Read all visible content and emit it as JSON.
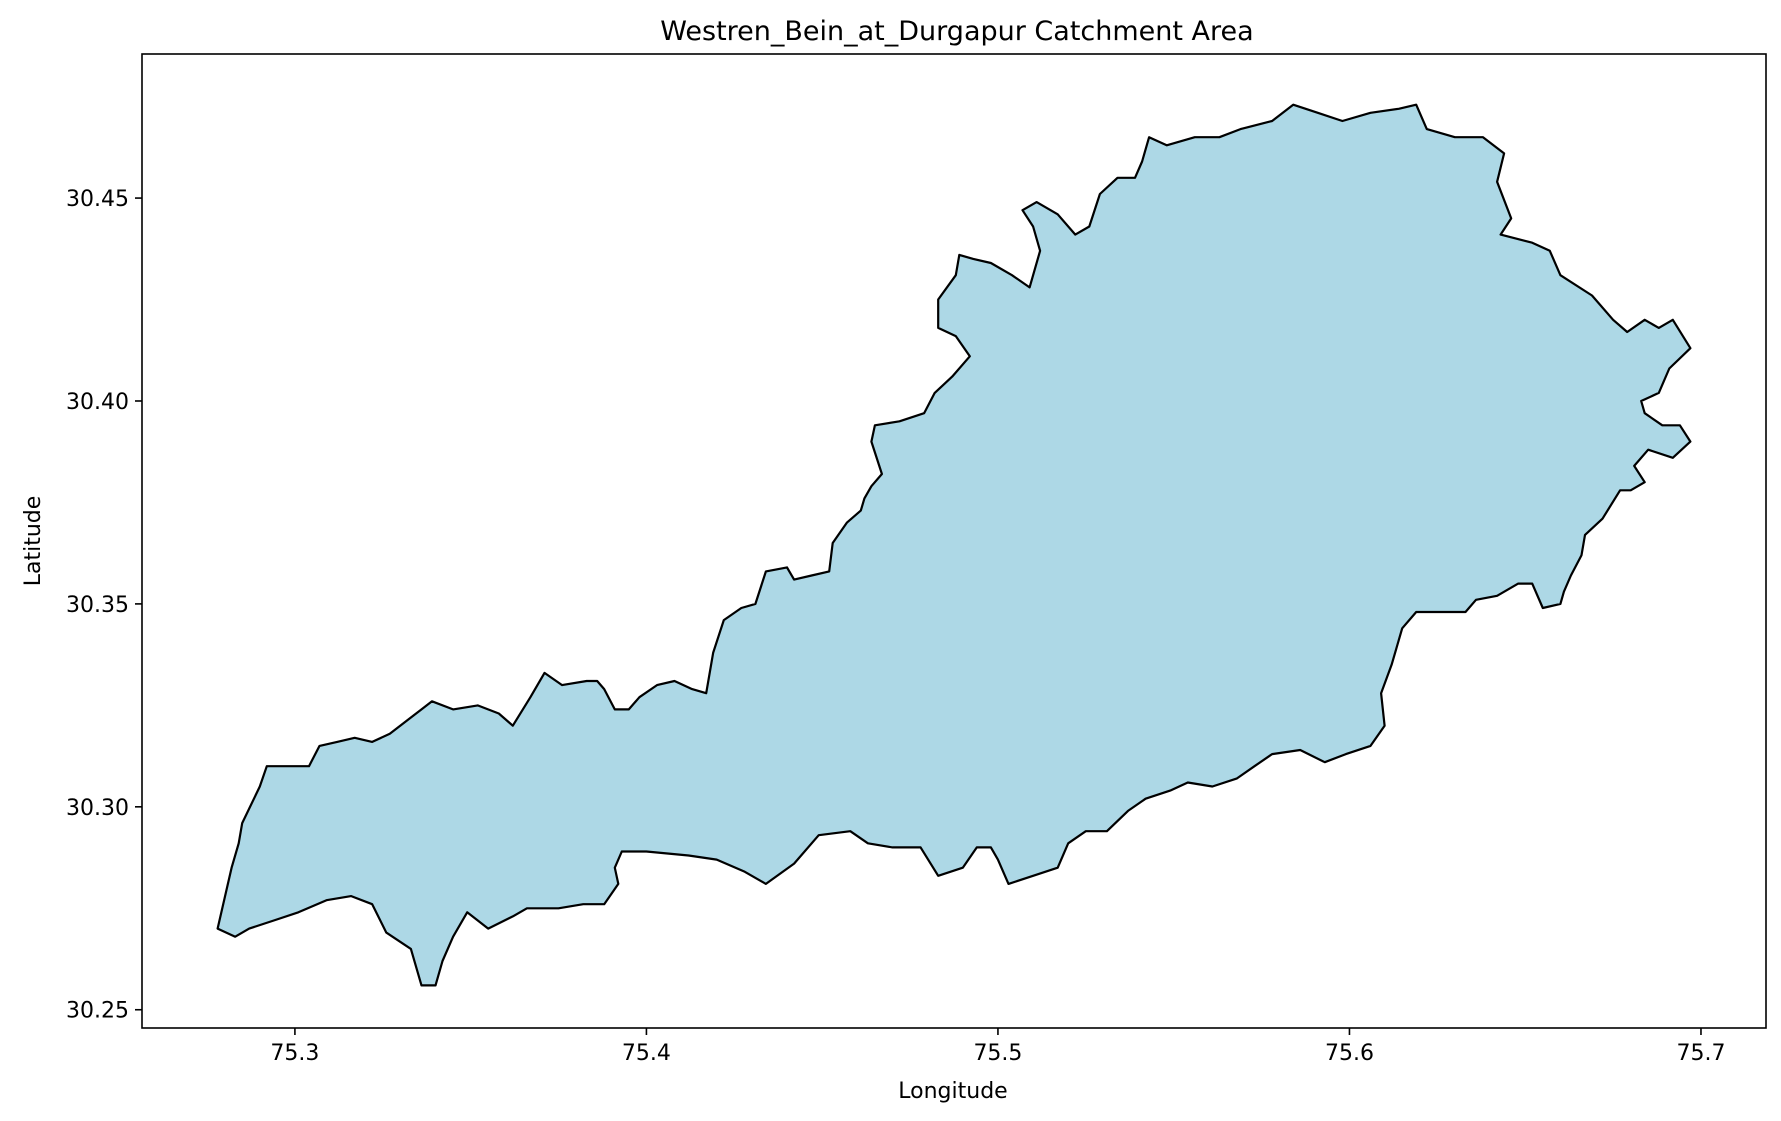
{
  "chart_data": {
    "type": "map",
    "title": "Westren_Bein_at_Durgapur Catchment Area",
    "xlabel": "Longitude",
    "ylabel": "Latitude",
    "xlim": [
      75.2565,
      75.7185
    ],
    "ylim": [
      30.2455,
      30.4855
    ],
    "x_ticks": [
      {
        "value": 75.3,
        "label": "75.3"
      },
      {
        "value": 75.4,
        "label": "75.4"
      },
      {
        "value": 75.5,
        "label": "75.5"
      },
      {
        "value": 75.6,
        "label": "75.6"
      },
      {
        "value": 75.7,
        "label": "75.7"
      }
    ],
    "y_ticks": [
      {
        "value": 30.25,
        "label": "30.25"
      },
      {
        "value": 30.3,
        "label": "30.30"
      },
      {
        "value": 30.35,
        "label": "30.35"
      },
      {
        "value": 30.4,
        "label": "30.40"
      },
      {
        "value": 30.45,
        "label": "30.45"
      }
    ],
    "grid": false,
    "fill_color": "#add8e6",
    "edge_color": "#000000",
    "boundary": [
      [
        75.278,
        30.27
      ],
      [
        75.282,
        30.285
      ],
      [
        75.284,
        30.291
      ],
      [
        75.285,
        30.296
      ],
      [
        75.29,
        30.305
      ],
      [
        75.292,
        30.31
      ],
      [
        75.297,
        30.31
      ],
      [
        75.3,
        30.31
      ],
      [
        75.304,
        30.31
      ],
      [
        75.307,
        30.315
      ],
      [
        75.312,
        30.316
      ],
      [
        75.317,
        30.317
      ],
      [
        75.322,
        30.316
      ],
      [
        75.327,
        30.318
      ],
      [
        75.333,
        30.322
      ],
      [
        75.336,
        30.324
      ],
      [
        75.339,
        30.326
      ],
      [
        75.345,
        30.324
      ],
      [
        75.352,
        30.325
      ],
      [
        75.358,
        30.323
      ],
      [
        75.362,
        30.32
      ],
      [
        75.367,
        30.327
      ],
      [
        75.371,
        30.333
      ],
      [
        75.376,
        30.33
      ],
      [
        75.383,
        30.331
      ],
      [
        75.386,
        30.331
      ],
      [
        75.388,
        30.329
      ],
      [
        75.391,
        30.324
      ],
      [
        75.395,
        30.324
      ],
      [
        75.398,
        30.327
      ],
      [
        75.403,
        30.33
      ],
      [
        75.408,
        30.331
      ],
      [
        75.413,
        30.329
      ],
      [
        75.417,
        30.328
      ],
      [
        75.419,
        30.338
      ],
      [
        75.422,
        30.346
      ],
      [
        75.427,
        30.349
      ],
      [
        75.431,
        30.35
      ],
      [
        75.434,
        30.358
      ],
      [
        75.44,
        30.359
      ],
      [
        75.442,
        30.356
      ],
      [
        75.447,
        30.357
      ],
      [
        75.452,
        30.358
      ],
      [
        75.453,
        30.365
      ],
      [
        75.457,
        30.37
      ],
      [
        75.461,
        30.373
      ],
      [
        75.462,
        30.376
      ],
      [
        75.464,
        30.379
      ],
      [
        75.467,
        30.382
      ],
      [
        75.464,
        30.39
      ],
      [
        75.465,
        30.394
      ],
      [
        75.472,
        30.395
      ],
      [
        75.479,
        30.397
      ],
      [
        75.482,
        30.402
      ],
      [
        75.487,
        30.406
      ],
      [
        75.492,
        30.411
      ],
      [
        75.488,
        30.416
      ],
      [
        75.483,
        30.418
      ],
      [
        75.483,
        30.425
      ],
      [
        75.488,
        30.431
      ],
      [
        75.489,
        30.436
      ],
      [
        75.493,
        30.435
      ],
      [
        75.498,
        30.434
      ],
      [
        75.504,
        30.431
      ],
      [
        75.509,
        30.428
      ],
      [
        75.512,
        30.437
      ],
      [
        75.51,
        30.443
      ],
      [
        75.507,
        30.447
      ],
      [
        75.511,
        30.449
      ],
      [
        75.517,
        30.446
      ],
      [
        75.522,
        30.441
      ],
      [
        75.526,
        30.443
      ],
      [
        75.529,
        30.451
      ],
      [
        75.534,
        30.455
      ],
      [
        75.539,
        30.455
      ],
      [
        75.541,
        30.459
      ],
      [
        75.543,
        30.465
      ],
      [
        75.548,
        30.463
      ],
      [
        75.556,
        30.465
      ],
      [
        75.563,
        30.465
      ],
      [
        75.569,
        30.467
      ],
      [
        75.578,
        30.469
      ],
      [
        75.584,
        30.473
      ],
      [
        75.591,
        30.471
      ],
      [
        75.598,
        30.469
      ],
      [
        75.606,
        30.471
      ],
      [
        75.614,
        30.472
      ],
      [
        75.619,
        30.473
      ],
      [
        75.622,
        30.467
      ],
      [
        75.63,
        30.465
      ],
      [
        75.638,
        30.465
      ],
      [
        75.644,
        30.461
      ],
      [
        75.642,
        30.454
      ],
      [
        75.646,
        30.445
      ],
      [
        75.643,
        30.441
      ],
      [
        75.652,
        30.439
      ],
      [
        75.657,
        30.437
      ],
      [
        75.66,
        30.431
      ],
      [
        75.669,
        30.426
      ],
      [
        75.675,
        30.42
      ],
      [
        75.679,
        30.417
      ],
      [
        75.684,
        30.42
      ],
      [
        75.688,
        30.418
      ],
      [
        75.692,
        30.42
      ],
      [
        75.697,
        30.413
      ],
      [
        75.691,
        30.408
      ],
      [
        75.688,
        30.402
      ],
      [
        75.683,
        30.4
      ],
      [
        75.684,
        30.397
      ],
      [
        75.689,
        30.394
      ],
      [
        75.694,
        30.394
      ],
      [
        75.697,
        30.39
      ],
      [
        75.692,
        30.386
      ],
      [
        75.685,
        30.388
      ],
      [
        75.681,
        30.384
      ],
      [
        75.684,
        30.38
      ],
      [
        75.68,
        30.378
      ],
      [
        75.677,
        30.378
      ],
      [
        75.672,
        30.371
      ],
      [
        75.667,
        30.367
      ],
      [
        75.666,
        30.362
      ],
      [
        75.663,
        30.357
      ],
      [
        75.661,
        30.353
      ],
      [
        75.66,
        30.35
      ],
      [
        75.655,
        30.349
      ],
      [
        75.652,
        30.355
      ],
      [
        75.648,
        30.355
      ],
      [
        75.642,
        30.352
      ],
      [
        75.636,
        30.351
      ],
      [
        75.633,
        30.348
      ],
      [
        75.626,
        30.348
      ],
      [
        75.619,
        30.348
      ],
      [
        75.615,
        30.344
      ],
      [
        75.612,
        30.335
      ],
      [
        75.609,
        30.328
      ],
      [
        75.61,
        30.32
      ],
      [
        75.606,
        30.315
      ],
      [
        75.599,
        30.313
      ],
      [
        75.593,
        30.311
      ],
      [
        75.586,
        30.314
      ],
      [
        75.578,
        30.313
      ],
      [
        75.573,
        30.31
      ],
      [
        75.568,
        30.307
      ],
      [
        75.561,
        30.305
      ],
      [
        75.554,
        30.306
      ],
      [
        75.549,
        30.304
      ],
      [
        75.542,
        30.302
      ],
      [
        75.537,
        30.299
      ],
      [
        75.531,
        30.294
      ],
      [
        75.525,
        30.294
      ],
      [
        75.52,
        30.291
      ],
      [
        75.517,
        30.285
      ],
      [
        75.51,
        30.283
      ],
      [
        75.503,
        30.281
      ],
      [
        75.5,
        30.287
      ],
      [
        75.498,
        30.29
      ],
      [
        75.494,
        30.29
      ],
      [
        75.49,
        30.285
      ],
      [
        75.483,
        30.283
      ],
      [
        75.478,
        30.29
      ],
      [
        75.47,
        30.29
      ],
      [
        75.463,
        30.291
      ],
      [
        75.458,
        30.294
      ],
      [
        75.449,
        30.293
      ],
      [
        75.442,
        30.286
      ],
      [
        75.434,
        30.281
      ],
      [
        75.428,
        30.284
      ],
      [
        75.42,
        30.287
      ],
      [
        75.412,
        30.288
      ],
      [
        75.4,
        30.289
      ],
      [
        75.393,
        30.289
      ],
      [
        75.391,
        30.285
      ],
      [
        75.392,
        30.281
      ],
      [
        75.388,
        30.276
      ],
      [
        75.382,
        30.276
      ],
      [
        75.375,
        30.275
      ],
      [
        75.366,
        30.275
      ],
      [
        75.362,
        30.273
      ],
      [
        75.355,
        30.27
      ],
      [
        75.349,
        30.274
      ],
      [
        75.345,
        30.268
      ],
      [
        75.342,
        30.262
      ],
      [
        75.34,
        30.256
      ],
      [
        75.336,
        30.256
      ],
      [
        75.333,
        30.265
      ],
      [
        75.326,
        30.269
      ],
      [
        75.322,
        30.276
      ],
      [
        75.316,
        30.278
      ],
      [
        75.309,
        30.277
      ],
      [
        75.301,
        30.274
      ],
      [
        75.294,
        30.272
      ],
      [
        75.287,
        30.27
      ],
      [
        75.283,
        30.268
      ]
    ]
  }
}
